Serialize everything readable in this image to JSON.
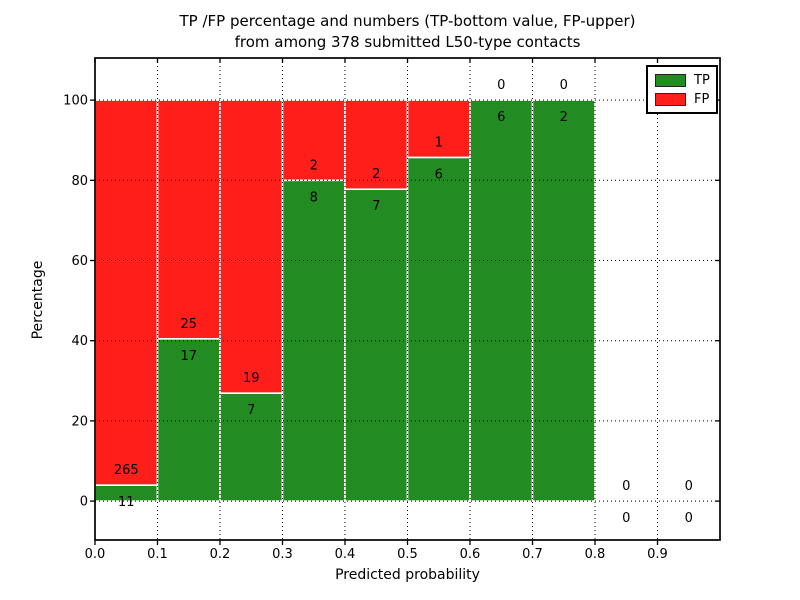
{
  "figure": {
    "title_line1": "TP /FP percentage and numbers (TP-bottom value, FP-upper)",
    "title_line2": "from among 378 submitted L50-type contacts",
    "xlabel": "Predicted probability",
    "ylabel": "Percentage"
  },
  "legend": {
    "items": [
      {
        "label": "TP",
        "color": "#228b22"
      },
      {
        "label": "FP",
        "color": "#ff1f1a"
      }
    ]
  },
  "chart_data": {
    "type": "bar",
    "stacked": true,
    "normalized_to_percent": true,
    "title": "TP /FP percentage and numbers (TP-bottom value, FP-upper) from among 378 submitted L50-type contacts",
    "xlabel": "Predicted probability",
    "ylabel": "Percentage",
    "total_submitted_contacts": 378,
    "bin_width": 0.1,
    "bin_starts": [
      0.0,
      0.1,
      0.2,
      0.3,
      0.4,
      0.5,
      0.6,
      0.7,
      0.8,
      0.9
    ],
    "series": [
      {
        "name": "TP",
        "color": "#228b22",
        "counts": [
          11,
          17,
          7,
          8,
          7,
          6,
          6,
          2,
          0,
          0
        ]
      },
      {
        "name": "FP",
        "color": "#ff1f1a",
        "counts": [
          265,
          25,
          19,
          2,
          2,
          1,
          0,
          0,
          0,
          0
        ]
      }
    ],
    "tp_percent_by_bin": [
      3.99,
      40.48,
      26.92,
      80.0,
      77.78,
      85.71,
      100.0,
      100.0,
      null,
      null
    ],
    "xticks": [
      "0.0",
      "0.1",
      "0.2",
      "0.3",
      "0.4",
      "0.5",
      "0.6",
      "0.7",
      "0.8",
      "0.9"
    ],
    "yticks": [
      0,
      20,
      40,
      60,
      80,
      100
    ],
    "xlim": [
      0.0,
      1.0
    ],
    "ylim": [
      -9.7,
      110.5
    ],
    "grid": "dotted",
    "grid_color": "#000000",
    "bar_edge_color": "#ffffff",
    "legend_position": "upper right"
  }
}
